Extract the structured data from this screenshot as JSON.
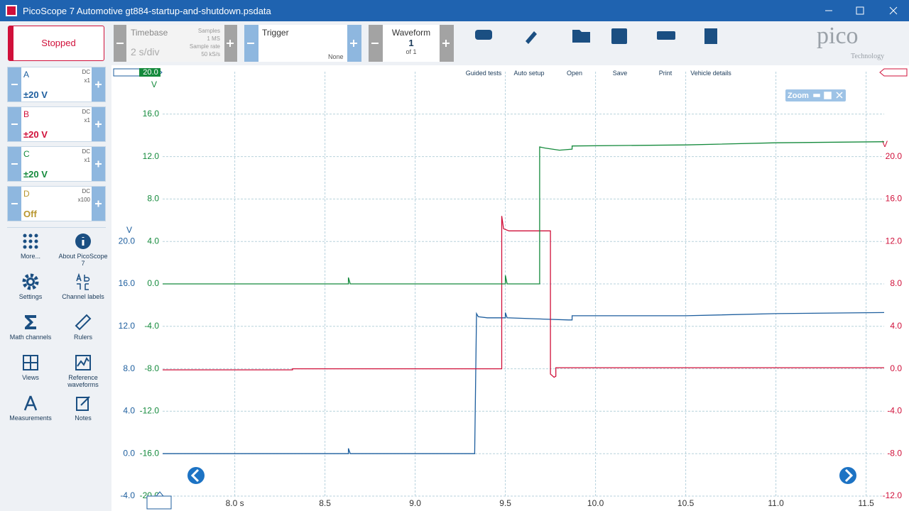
{
  "window": {
    "title": "PicoScope 7 Automotive gt884-startup-and-shutdown.psdata"
  },
  "toolbar": {
    "run_state": "Stopped",
    "timebase": {
      "label": "Timebase",
      "value": "2 s/div",
      "samples_label": "Samples",
      "samples": "1 MS",
      "rate_label": "Sample rate",
      "rate": "50 kS/s"
    },
    "trigger": {
      "label": "Trigger",
      "mode": "None"
    },
    "waveform": {
      "label": "Waveform",
      "index": "1",
      "count": "of 1"
    },
    "buttons": [
      "Guided tests",
      "Auto setup",
      "Open",
      "Save",
      "Print",
      "Vehicle details"
    ],
    "logo": {
      "name": "pico",
      "tagline": "Technology"
    }
  },
  "channels": [
    {
      "name": "A",
      "coupling": "DC",
      "probe": "x1",
      "range": "±20 V",
      "color": "#1d5e9e"
    },
    {
      "name": "B",
      "coupling": "DC",
      "probe": "x1",
      "range": "±20 V",
      "color": "#d0103a"
    },
    {
      "name": "C",
      "coupling": "DC",
      "probe": "x1",
      "range": "±20 V",
      "color": "#148a3c"
    },
    {
      "name": "D",
      "coupling": "DC",
      "probe": "x100",
      "range": "Off",
      "color": "#b8962e"
    }
  ],
  "sidebar": [
    "More...",
    "About PicoScope 7",
    "Settings",
    "Channel labels",
    "Math channels",
    "Rulers",
    "Views",
    "Reference waveforms",
    "Measurements",
    "Notes"
  ],
  "chart_data": {
    "type": "line",
    "grid": true,
    "zoom_label": "Zoom",
    "top_marker": "20.0",
    "xlim": [
      7.6,
      11.6
    ],
    "xticks": [
      {
        "value": 8,
        "label": "8.0 s"
      },
      8.5,
      {
        "value": 9,
        "label": "9.0"
      },
      9.5,
      {
        "value": 10,
        "label": "10.0"
      },
      10.5,
      {
        "value": 11,
        "label": "11.0"
      },
      11.5
    ],
    "y_axes": [
      {
        "unit": "V",
        "color": "#148a3c",
        "ylim": [
          -20,
          20
        ],
        "yticks": [
          {
            "value": -20,
            "label": "-20.0"
          },
          {
            "value": -16,
            "label": "-16.0"
          },
          {
            "value": -12,
            "label": "-12.0"
          },
          {
            "value": -8,
            "label": "-8.0"
          },
          {
            "value": -4,
            "label": "-4.0"
          },
          {
            "value": 0,
            "label": "0.0"
          },
          {
            "value": 4,
            "label": "4.0"
          },
          {
            "value": 8,
            "label": "8.0"
          },
          {
            "value": 12,
            "label": "12.0"
          },
          {
            "value": 16,
            "label": "16.0"
          }
        ]
      },
      {
        "unit": "V",
        "color": "#1d5e9e",
        "ylim": [
          -4,
          36
        ],
        "yticks": [
          {
            "value": -4,
            "label": "-4.0"
          },
          {
            "value": 0,
            "label": "0.0"
          },
          {
            "value": 4,
            "label": "4.0"
          },
          {
            "value": 8,
            "label": "8.0"
          },
          {
            "value": 12,
            "label": "12.0"
          },
          {
            "value": 16,
            "label": "16.0"
          },
          {
            "value": 20,
            "label": "20.0"
          }
        ]
      },
      {
        "unit": "V",
        "color": "#d0103a",
        "ylim": [
          -12,
          28
        ],
        "yticks": [
          {
            "value": -12,
            "label": "-12.0"
          },
          {
            "value": -8,
            "label": "-8.0"
          },
          {
            "value": -4,
            "label": "-4.0"
          },
          {
            "value": 0,
            "label": "0.0"
          },
          {
            "value": 4,
            "label": "4.0"
          },
          {
            "value": 8,
            "label": "8.0"
          },
          {
            "value": 12,
            "label": "12.0"
          },
          {
            "value": 16,
            "label": "16.0"
          },
          {
            "value": 20,
            "label": "20.0"
          }
        ]
      }
    ],
    "series": [
      {
        "axis": 1,
        "color": "#1d5e9e",
        "x": [
          7.6,
          8.63,
          8.63,
          8.64,
          9.33,
          9.34,
          9.35,
          9.4,
          9.5,
          9.5,
          9.51,
          9.85,
          9.87,
          9.87,
          10.5,
          11.0,
          11.6
        ],
        "values": [
          0,
          0,
          0.5,
          0,
          0,
          13.2,
          12.9,
          12.8,
          12.8,
          13.3,
          12.8,
          12.6,
          12.6,
          13.0,
          13.0,
          13.2,
          13.3
        ]
      },
      {
        "axis": 2,
        "color": "#d0103a",
        "x": [
          7.6,
          8.32,
          8.32,
          9.48,
          9.48,
          9.49,
          9.52,
          9.75,
          9.75,
          9.77,
          9.78,
          9.78,
          10.5,
          11.6
        ],
        "values": [
          -0.1,
          -0.1,
          0,
          0,
          14.4,
          13.2,
          13.0,
          13.0,
          -0.5,
          -0.8,
          -0.7,
          0.1,
          0.1,
          0.1
        ]
      },
      {
        "axis": 0,
        "color": "#148a3c",
        "x": [
          7.6,
          8.63,
          8.63,
          8.64,
          9.48,
          9.5,
          9.5,
          9.51,
          9.69,
          9.69,
          9.72,
          9.8,
          9.87,
          9.87,
          10.5,
          11.0,
          11.6
        ],
        "values": [
          0,
          0,
          0.6,
          0,
          0,
          0,
          0.8,
          0,
          0,
          12.9,
          12.8,
          12.6,
          12.7,
          13.0,
          13.1,
          13.3,
          13.4
        ]
      }
    ]
  }
}
